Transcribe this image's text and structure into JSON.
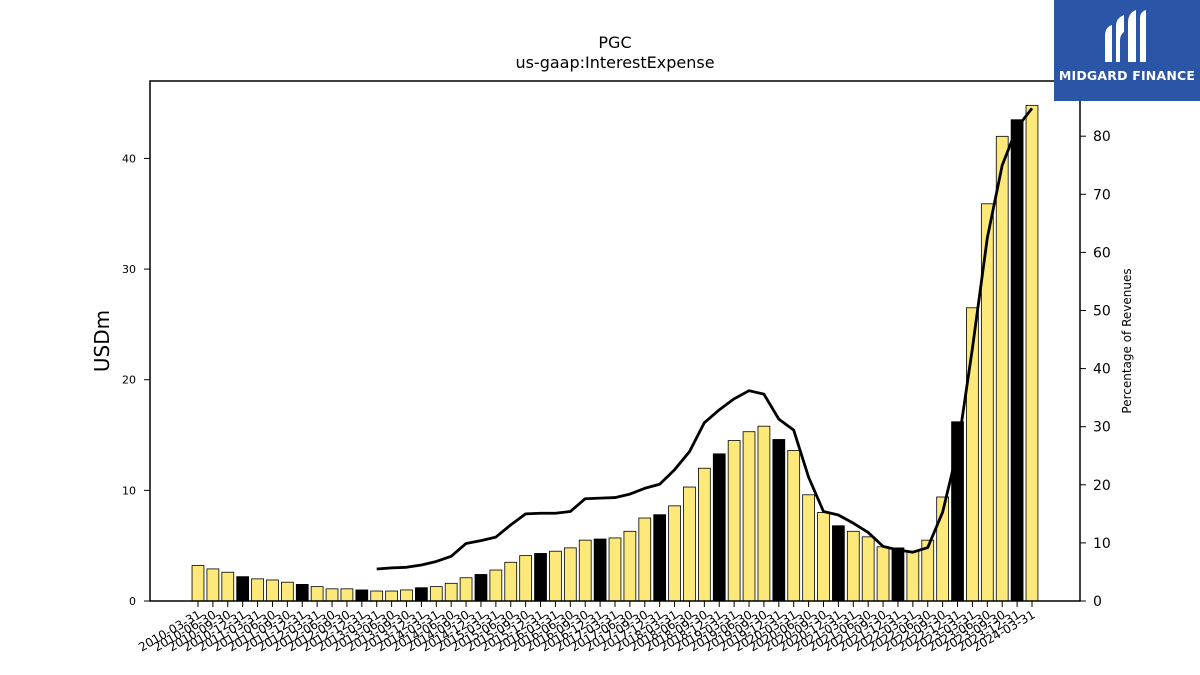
{
  "brand": {
    "name": "MIDGARD FINANCE",
    "bg_color": "#2b56a8",
    "icon": "midgard-logo-icon"
  },
  "chart_data": {
    "type": "bar",
    "title": "PGC",
    "subtitle": "us-gaap:InterestExpense",
    "ylabel": "USDm",
    "y2label": "Percentage of Revenues",
    "ylim": [
      0,
      47
    ],
    "y2lim": [
      0,
      89.5
    ],
    "yticks": [
      0,
      10,
      20,
      30,
      40
    ],
    "y2ticks": [
      0,
      10,
      20,
      30,
      40,
      50,
      60,
      70,
      80
    ],
    "grid": false,
    "bar_color_default": "#fce97a",
    "bar_color_highlight": "#000000",
    "line_color": "#000000",
    "categories": [
      "2010-03-31",
      "2010-06-30",
      "2010-09-30",
      "2010-12-31",
      "2011-03-31",
      "2011-06-30",
      "2011-09-30",
      "2011-12-31",
      "2012-03-31",
      "2012-06-30",
      "2012-09-30",
      "2012-12-31",
      "2013-03-31",
      "2013-06-30",
      "2013-09-30",
      "2013-12-31",
      "2014-03-31",
      "2014-06-30",
      "2014-09-30",
      "2014-12-31",
      "2015-03-31",
      "2015-06-30",
      "2015-09-30",
      "2015-12-31",
      "2016-03-31",
      "2016-06-30",
      "2016-09-30",
      "2016-12-31",
      "2017-03-31",
      "2017-06-30",
      "2017-09-30",
      "2017-12-31",
      "2018-03-31",
      "2018-06-30",
      "2018-09-30",
      "2018-12-31",
      "2019-03-31",
      "2019-06-30",
      "2019-09-30",
      "2019-12-31",
      "2020-03-31",
      "2020-06-30",
      "2020-09-30",
      "2020-12-31",
      "2021-03-31",
      "2021-06-30",
      "2021-09-30",
      "2021-12-31",
      "2022-03-31",
      "2022-06-30",
      "2022-09-30",
      "2022-12-31",
      "2023-03-31",
      "2023-06-30",
      "2023-09-30",
      "2023-12-31",
      "2024-03-31"
    ],
    "series": [
      {
        "type": "bar",
        "axis": "left",
        "values": [
          3.2,
          2.9,
          2.6,
          2.2,
          2.0,
          1.9,
          1.7,
          1.5,
          1.3,
          1.1,
          1.1,
          1.0,
          0.9,
          0.9,
          1.0,
          1.2,
          1.3,
          1.6,
          2.1,
          2.4,
          2.8,
          3.5,
          4.1,
          4.3,
          4.5,
          4.8,
          5.5,
          5.6,
          5.7,
          6.3,
          7.5,
          7.8,
          8.6,
          10.3,
          12.0,
          13.3,
          14.5,
          15.3,
          15.8,
          14.6,
          13.6,
          9.6,
          8.0,
          6.8,
          6.3,
          5.8,
          4.9,
          4.8,
          4.5,
          5.5,
          9.4,
          16.2,
          26.5,
          35.9,
          42.0,
          43.5,
          44.8
        ],
        "highlight": [
          false,
          false,
          false,
          true,
          false,
          false,
          false,
          true,
          false,
          false,
          false,
          true,
          false,
          false,
          false,
          true,
          false,
          false,
          false,
          true,
          false,
          false,
          false,
          true,
          false,
          false,
          false,
          true,
          false,
          false,
          false,
          true,
          false,
          false,
          false,
          true,
          false,
          false,
          false,
          true,
          false,
          false,
          false,
          true,
          false,
          false,
          false,
          true,
          false,
          false,
          false,
          true,
          false,
          false,
          false,
          true,
          false
        ]
      },
      {
        "type": "line",
        "axis": "right",
        "values": [
          null,
          null,
          null,
          null,
          null,
          null,
          null,
          null,
          null,
          null,
          null,
          null,
          5.5,
          5.7,
          5.8,
          6.2,
          6.8,
          7.7,
          9.9,
          10.4,
          11.0,
          13.1,
          15.0,
          15.1,
          15.1,
          15.4,
          17.6,
          17.7,
          17.8,
          18.4,
          19.4,
          20.1,
          22.6,
          25.7,
          30.7,
          32.9,
          34.8,
          36.2,
          35.6,
          31.3,
          29.4,
          21.3,
          15.4,
          14.8,
          13.4,
          11.8,
          9.4,
          8.8,
          8.4,
          9.2,
          15.3,
          26.0,
          43.5,
          62.5,
          75.0,
          81.5,
          84.8
        ]
      }
    ]
  }
}
